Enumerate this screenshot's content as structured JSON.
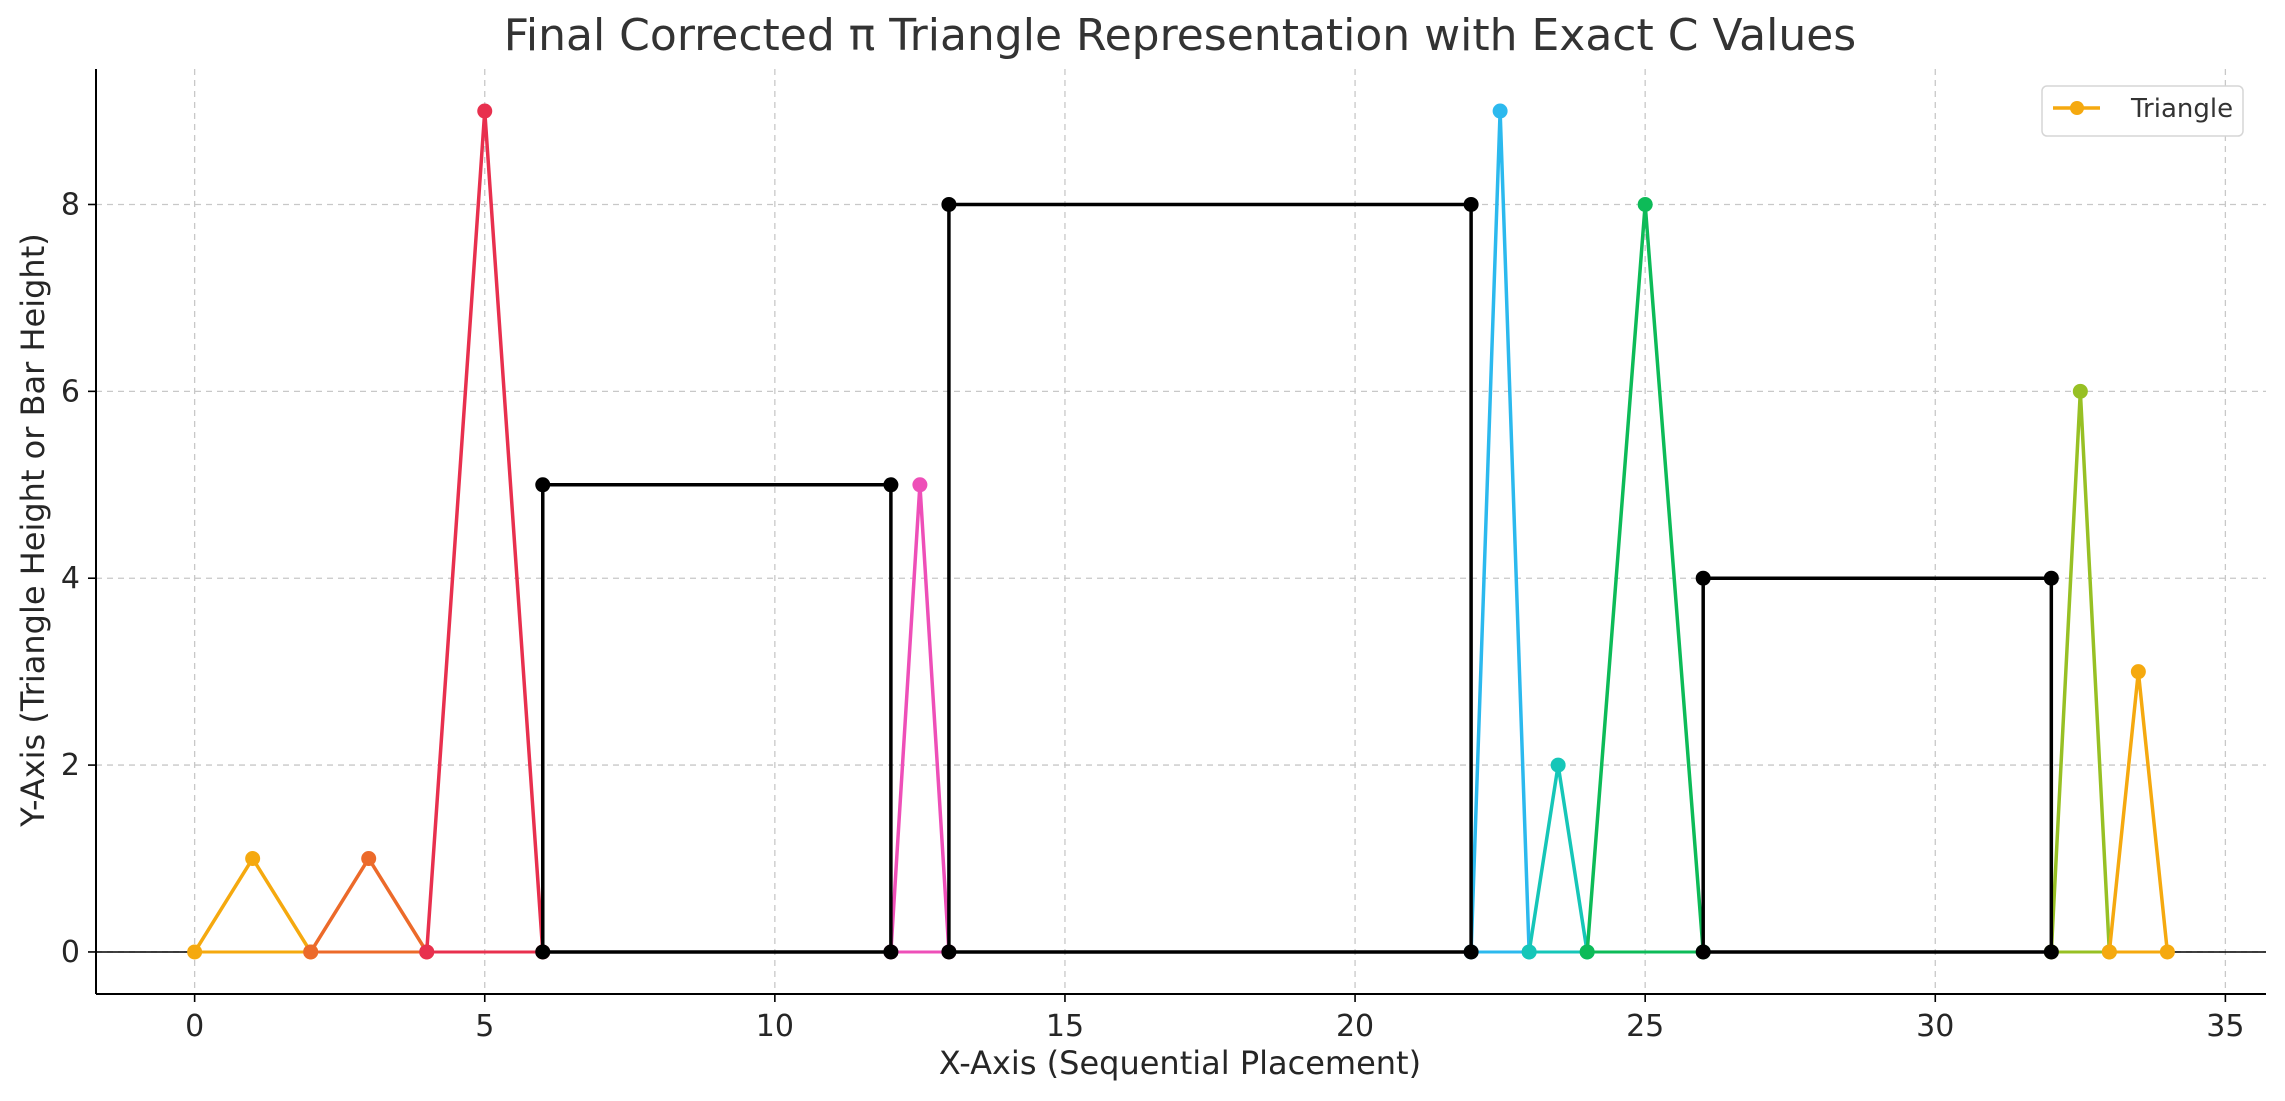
{
  "chart_data": {
    "type": "line",
    "title": "Final Corrected π Triangle Representation with Exact C Values",
    "xlabel": "X-Axis (Sequential Placement)",
    "ylabel": "Y-Axis (Triangle Height or Bar Height)",
    "xlim": [
      -1.7,
      35.7
    ],
    "ylim": [
      -0.45,
      9.45
    ],
    "xticks": [
      0,
      5,
      10,
      15,
      20,
      25,
      30,
      35
    ],
    "yticks": [
      0,
      2,
      4,
      6,
      8
    ],
    "grid": true,
    "grid_style": "dashed",
    "legend": {
      "placement": "top-right",
      "entries": [
        {
          "label": "Triangle",
          "color": "#f5a90f"
        }
      ]
    },
    "triangles": [
      {
        "x": [
          0,
          1,
          2
        ],
        "y": [
          0,
          1,
          0
        ],
        "color": "#f5a90f"
      },
      {
        "x": [
          2,
          3,
          4
        ],
        "y": [
          0,
          1,
          0
        ],
        "color": "#ec6a2a"
      },
      {
        "x": [
          4,
          5,
          6
        ],
        "y": [
          0,
          9,
          0
        ],
        "color": "#e8304e"
      },
      {
        "x": [
          12,
          12.5,
          13
        ],
        "y": [
          0,
          5,
          0
        ],
        "color": "#ee4fb8"
      },
      {
        "x": [
          22,
          22.5,
          23
        ],
        "y": [
          0,
          9,
          0
        ],
        "color": "#2cb9ee"
      },
      {
        "x": [
          23,
          23.5,
          24
        ],
        "y": [
          0,
          2,
          0
        ],
        "color": "#16c6b8"
      },
      {
        "x": [
          24,
          25,
          26
        ],
        "y": [
          0,
          8,
          0
        ],
        "color": "#0dbb58"
      },
      {
        "x": [
          32,
          32.5,
          33
        ],
        "y": [
          0,
          6,
          0
        ],
        "color": "#97c024"
      },
      {
        "x": [
          33,
          33.5,
          34
        ],
        "y": [
          0,
          3,
          0
        ],
        "color": "#f5a90f"
      }
    ],
    "bars": [
      {
        "x_start": 6,
        "x_end": 12,
        "height": 5,
        "color": "#000000"
      },
      {
        "x_start": 13,
        "x_end": 22,
        "height": 8,
        "color": "#000000"
      },
      {
        "x_start": 26,
        "x_end": 32,
        "height": 4,
        "color": "#000000"
      }
    ],
    "baseline": {
      "y": 0,
      "color": "#000000"
    }
  }
}
